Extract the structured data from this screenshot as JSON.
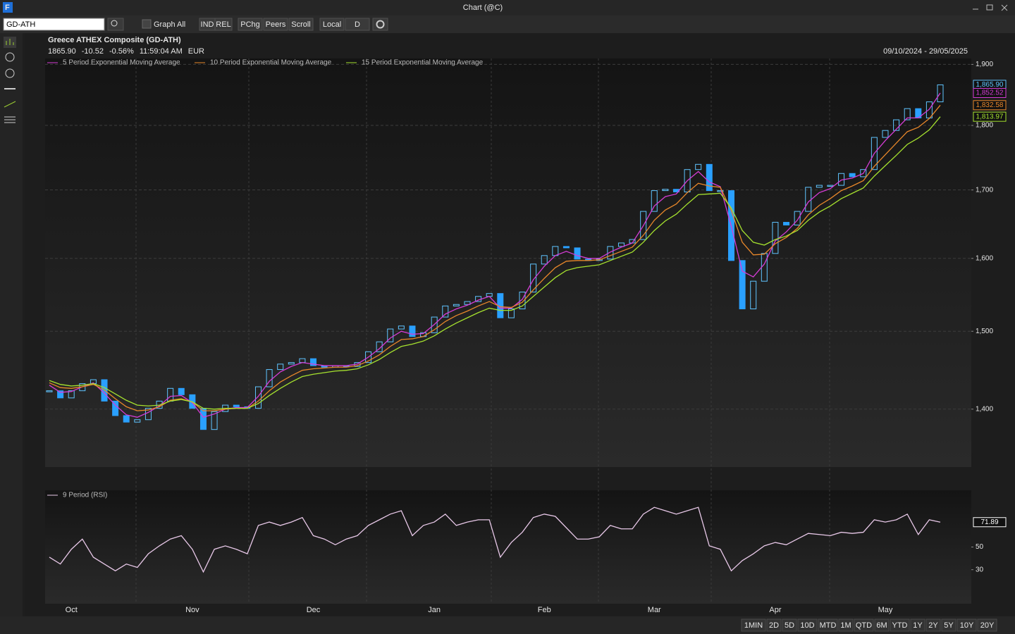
{
  "app": {
    "title": "Chart (@C)",
    "toolbar": {
      "symbol": "GD-ATH",
      "graph_all": "Graph All",
      "buttons": [
        "IND",
        "REL",
        "PChg",
        "Peers",
        "Scroll",
        "Local",
        "D"
      ]
    },
    "ranges": [
      "1MIN",
      "2D",
      "5D",
      "10D",
      "MTD",
      "1M",
      "QTD",
      "6M",
      "YTD",
      "1Y",
      "2Y",
      "5Y",
      "10Y",
      "20Y"
    ]
  },
  "header": {
    "name": "Greece ATHEX Composite (GD-ATH)",
    "last": "1865.90",
    "change": "-10.52",
    "pct": "-0.56%",
    "time": "11:59:04 AM",
    "currency": "EUR",
    "range": "09/10/2024 - 29/05/2025"
  },
  "chart_data": [
    {
      "type": "candlestick",
      "log": true,
      "grid": true,
      "categories": [
        null,
        null,
        "Oct",
        null,
        null,
        null,
        null,
        null,
        null,
        null,
        null,
        null,
        null,
        "Nov",
        null,
        null,
        null,
        null,
        null,
        null,
        null,
        null,
        null,
        null,
        "Dec",
        null,
        null,
        null,
        null,
        null,
        null,
        null,
        null,
        null,
        null,
        "Jan",
        null,
        null,
        null,
        null,
        null,
        null,
        null,
        null,
        null,
        "Feb",
        null,
        null,
        null,
        null,
        null,
        null,
        null,
        null,
        null,
        "Mar",
        null,
        null,
        null,
        null,
        null,
        null,
        null,
        null,
        null,
        null,
        "Apr",
        null,
        null,
        null,
        null,
        null,
        null,
        null,
        null,
        null,
        "May",
        null,
        null,
        null,
        null,
        null
      ],
      "ylim": [
        1330,
        1910
      ],
      "yticks": [
        {
          "value": 1400,
          "label": "1,400"
        },
        {
          "value": 1500,
          "label": "1,500"
        },
        {
          "value": 1600,
          "label": "1,600"
        },
        {
          "value": 1700,
          "label": "1,700"
        },
        {
          "value": 1800,
          "label": "1,800"
        },
        {
          "value": 1900,
          "label": "1,900"
        }
      ],
      "series": [
        {
          "name": "GD-ATH",
          "color": "#2aa0ff",
          "values": [
            1423,
            1414,
            1423,
            1432,
            1437,
            1410,
            1392,
            1384,
            1387,
            1401,
            1410,
            1426,
            1418,
            1401,
            1375,
            1397,
            1405,
            1403,
            1401,
            1428,
            1450,
            1457,
            1459,
            1464,
            1455,
            1453,
            1455,
            1454,
            1459,
            1473,
            1486,
            1503,
            1507,
            1493,
            1498,
            1519,
            1534,
            1536,
            1540,
            1547,
            1551,
            1518,
            1530,
            1553,
            1592,
            1604,
            1617,
            1615,
            1599,
            1597,
            1599,
            1617,
            1622,
            1627,
            1668,
            1699,
            1701,
            1697,
            1731,
            1739,
            1699,
            1699,
            1597,
            1530,
            1568,
            1607,
            1652,
            1648,
            1668,
            1704,
            1707,
            1707,
            1725,
            1720,
            1731,
            1781,
            1792,
            1809,
            1827,
            1812,
            1838,
            1865.9
          ],
          "value_labels": {
            "81": "1,865.90"
          }
        },
        {
          "name": "5 Period Exponential Moving Average",
          "color": "#d63cd6",
          "values": [
            1430,
            1421,
            1422,
            1428,
            1433,
            1420,
            1405,
            1393,
            1390,
            1396,
            1404,
            1416,
            1417,
            1408,
            1390,
            1394,
            1400,
            1402,
            1402,
            1416,
            1435,
            1447,
            1454,
            1459,
            1457,
            1455,
            1455,
            1455,
            1457,
            1466,
            1477,
            1491,
            1500,
            1496,
            1497,
            1509,
            1523,
            1530,
            1535,
            1542,
            1547,
            1531,
            1531,
            1543,
            1570,
            1589,
            1604,
            1610,
            1604,
            1600,
            1600,
            1609,
            1616,
            1622,
            1647,
            1676,
            1690,
            1694,
            1714,
            1728,
            1712,
            1705,
            1646,
            1582,
            1574,
            1592,
            1625,
            1638,
            1655,
            1682,
            1696,
            1702,
            1715,
            1718,
            1725,
            1756,
            1776,
            1794,
            1812,
            1812,
            1826,
            1852.52
          ],
          "value_labels": {
            "81": "1,852.52"
          }
        },
        {
          "name": "10 Period Exponential Moving Average",
          "color": "#e8872a",
          "values": [
            1433,
            1427,
            1426,
            1428,
            1431,
            1424,
            1413,
            1403,
            1398,
            1399,
            1403,
            1411,
            1413,
            1409,
            1398,
            1398,
            1400,
            1401,
            1401,
            1410,
            1423,
            1434,
            1442,
            1449,
            1451,
            1452,
            1453,
            1453,
            1455,
            1461,
            1469,
            1480,
            1489,
            1490,
            1493,
            1502,
            1513,
            1521,
            1527,
            1534,
            1540,
            1533,
            1532,
            1539,
            1556,
            1572,
            1587,
            1596,
            1597,
            1597,
            1598,
            1604,
            1610,
            1616,
            1633,
            1655,
            1670,
            1679,
            1696,
            1710,
            1706,
            1704,
            1669,
            1623,
            1605,
            1606,
            1621,
            1630,
            1643,
            1663,
            1677,
            1687,
            1699,
            1706,
            1714,
            1736,
            1754,
            1772,
            1790,
            1797,
            1811,
            1832.58
          ],
          "value_labels": {
            "81": "1,832.58"
          }
        },
        {
          "name": "15 Period Exponential Moving Average",
          "color": "#a6e22e",
          "values": [
            1436,
            1431,
            1429,
            1430,
            1432,
            1427,
            1419,
            1411,
            1405,
            1404,
            1405,
            1410,
            1412,
            1409,
            1401,
            1400,
            1401,
            1401,
            1401,
            1407,
            1417,
            1426,
            1434,
            1441,
            1444,
            1446,
            1448,
            1449,
            1451,
            1456,
            1463,
            1472,
            1480,
            1483,
            1487,
            1494,
            1503,
            1511,
            1518,
            1525,
            1531,
            1528,
            1528,
            1534,
            1547,
            1560,
            1573,
            1583,
            1587,
            1589,
            1591,
            1597,
            1603,
            1609,
            1623,
            1640,
            1654,
            1664,
            1679,
            1693,
            1694,
            1695,
            1673,
            1640,
            1623,
            1619,
            1627,
            1632,
            1640,
            1655,
            1667,
            1676,
            1687,
            1695,
            1703,
            1721,
            1737,
            1753,
            1770,
            1780,
            1793,
            1813.97
          ],
          "value_labels": {
            "81": "1,813.97"
          }
        }
      ]
    },
    {
      "type": "line",
      "grid": false,
      "ylim": [
        0,
        100
      ],
      "yticks": [
        30,
        50
      ],
      "series": [
        {
          "name": "9 Period (RSI)",
          "color": "#e8c8e8",
          "values": [
            41,
            35,
            48,
            57,
            41,
            35,
            29,
            35,
            32,
            44,
            51,
            57,
            60,
            48,
            28,
            48,
            51,
            48,
            44,
            69,
            72,
            69,
            72,
            76,
            60,
            57,
            52,
            57,
            60,
            69,
            74,
            79,
            82,
            60,
            69,
            72,
            79,
            69,
            72,
            74,
            74,
            41,
            54,
            63,
            76,
            79,
            77,
            67,
            57,
            57,
            59,
            69,
            66,
            66,
            79,
            85,
            82,
            79,
            82,
            85,
            51,
            48,
            29,
            38,
            44,
            51,
            54,
            52,
            57,
            62,
            61,
            60,
            63,
            62,
            63,
            74,
            72,
            74,
            79,
            61,
            74,
            71.89
          ],
          "value_labels": {
            "81": "71.89"
          }
        }
      ]
    }
  ]
}
